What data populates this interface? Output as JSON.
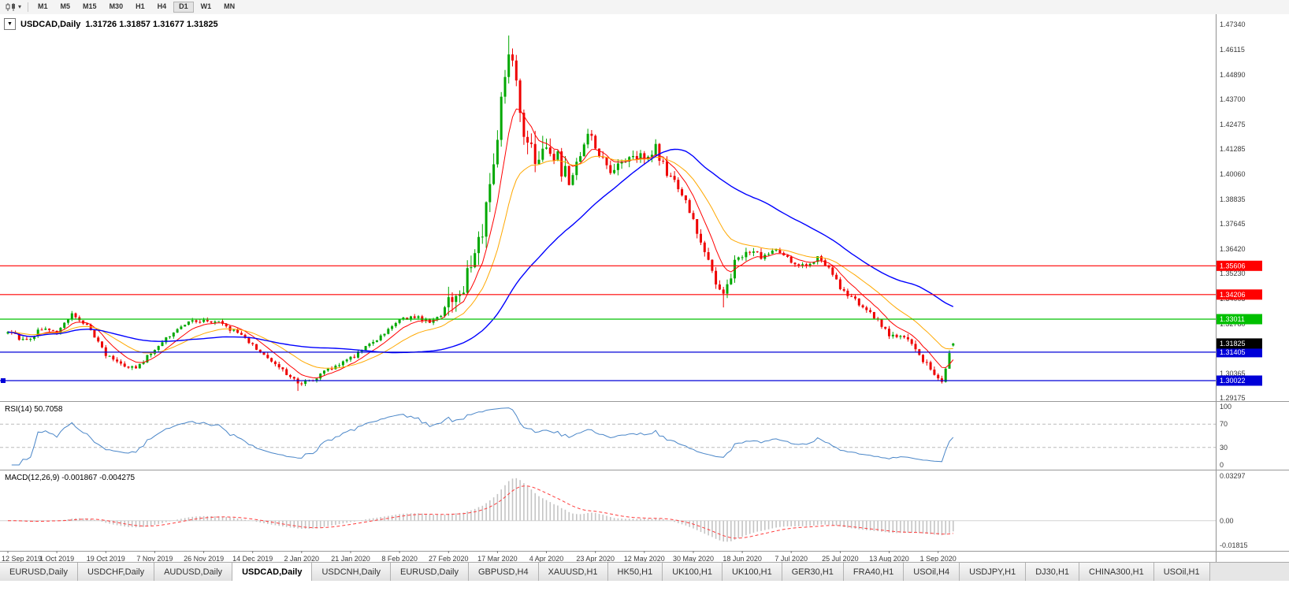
{
  "toolbar": {
    "timeframes": [
      "M1",
      "M5",
      "M15",
      "M30",
      "H1",
      "H4",
      "D1",
      "W1",
      "MN"
    ],
    "active_timeframe": "D1"
  },
  "chart_header": {
    "symbol_label": "USDCAD,Daily",
    "ohlc": "1.31726 1.31857 1.31677 1.31825"
  },
  "chart_data": {
    "type": "candlestick",
    "symbol": "USDCAD",
    "timeframe": "Daily",
    "current_bar": {
      "open": 1.31726,
      "high": 1.31857,
      "low": 1.31677,
      "close": 1.31825
    },
    "y_axis": {
      "top": 1.4784,
      "bottom": 1.29025,
      "labels": [
        "1.47340",
        "1.46115",
        "1.44890",
        "1.43700",
        "1.42475",
        "1.41285",
        "1.40060",
        "1.38835",
        "1.37645",
        "1.36420",
        "1.35230",
        "1.34005",
        "1.32780",
        "1.30365",
        "1.29175"
      ]
    },
    "x_labels": [
      "12 Sep 2019",
      "1 Oct 2019",
      "19 Oct 2019",
      "7 Nov 2019",
      "26 Nov 2019",
      "14 Dec 2019",
      "2 Jan 2020",
      "21 Jan 2020",
      "8 Feb 2020",
      "27 Feb 2020",
      "17 Mar 2020",
      "4 Apr 2020",
      "23 Apr 2020",
      "12 May 2020",
      "30 May 2020",
      "18 Jun 2020",
      "7 Jul 2020",
      "25 Jul 2020",
      "13 Aug 2020",
      "1 Sep 2020"
    ],
    "x_label_step": 13,
    "num_candles": 252,
    "candle_colors": {
      "up": "#00A800",
      "down": "#EE0000"
    },
    "horizontal_lines": [
      {
        "price": 1.35606,
        "color": "#FF0000",
        "left_marker": false
      },
      {
        "price": 1.34206,
        "color": "#FF0000",
        "left_marker": false
      },
      {
        "price": 1.33011,
        "color": "#00C000",
        "left_marker": false
      },
      {
        "price": 1.31405,
        "color": "#0000D8",
        "left_marker": false
      },
      {
        "price": 1.30022,
        "color": "#0000D8",
        "left_marker": true
      }
    ],
    "current_price_badge": {
      "price": 1.31825,
      "color": "#000000"
    },
    "price_path_anchors": [
      [
        0,
        1.3235
      ],
      [
        5,
        1.3195
      ],
      [
        9,
        1.3258
      ],
      [
        13,
        1.3242
      ],
      [
        17,
        1.333
      ],
      [
        21,
        1.3268
      ],
      [
        26,
        1.313
      ],
      [
        30,
        1.3078
      ],
      [
        34,
        1.3062
      ],
      [
        39,
        1.3155
      ],
      [
        44,
        1.3235
      ],
      [
        48,
        1.3282
      ],
      [
        52,
        1.33
      ],
      [
        57,
        1.3278
      ],
      [
        61,
        1.323
      ],
      [
        65,
        1.3172
      ],
      [
        69,
        1.312
      ],
      [
        73,
        1.3052
      ],
      [
        77,
        1.2986
      ],
      [
        80,
        1.3
      ],
      [
        84,
        1.3045
      ],
      [
        88,
        1.3075
      ],
      [
        91,
        1.3108
      ],
      [
        95,
        1.3165
      ],
      [
        100,
        1.3232
      ],
      [
        104,
        1.3295
      ],
      [
        108,
        1.3312
      ],
      [
        112,
        1.329
      ],
      [
        115,
        1.3312
      ],
      [
        117,
        1.3392
      ],
      [
        120,
        1.3425
      ],
      [
        123,
        1.353
      ],
      [
        126,
        1.3705
      ],
      [
        128,
        1.393
      ],
      [
        130,
        1.418
      ],
      [
        132,
        1.448
      ],
      [
        133,
        1.462
      ],
      [
        135,
        1.4415
      ],
      [
        137,
        1.423
      ],
      [
        140,
        1.4062
      ],
      [
        143,
        1.4172
      ],
      [
        146,
        1.408
      ],
      [
        149,
        1.3952
      ],
      [
        152,
        1.41
      ],
      [
        154,
        1.4228
      ],
      [
        156,
        1.412
      ],
      [
        160,
        1.4032
      ],
      [
        164,
        1.409
      ],
      [
        169,
        1.4102
      ],
      [
        172,
        1.4132
      ],
      [
        175,
        1.4022
      ],
      [
        178,
        1.395
      ],
      [
        182,
        1.379
      ],
      [
        185,
        1.362
      ],
      [
        188,
        1.3482
      ],
      [
        190,
        1.3405
      ],
      [
        193,
        1.3572
      ],
      [
        196,
        1.364
      ],
      [
        200,
        1.3602
      ],
      [
        204,
        1.3648
      ],
      [
        208,
        1.3582
      ],
      [
        212,
        1.3562
      ],
      [
        215,
        1.36
      ],
      [
        219,
        1.3522
      ],
      [
        221,
        1.3445
      ],
      [
        225,
        1.3392
      ],
      [
        228,
        1.3352
      ],
      [
        231,
        1.3295
      ],
      [
        234,
        1.3232
      ],
      [
        237,
        1.3222
      ],
      [
        240,
        1.3192
      ],
      [
        242,
        1.3132
      ],
      [
        244,
        1.3082
      ],
      [
        246,
        1.3032
      ],
      [
        248,
        1.2998
      ],
      [
        249,
        1.3062
      ],
      [
        250,
        1.3132
      ],
      [
        251,
        1.3182
      ]
    ],
    "volatility_zones": [
      {
        "from": 0,
        "to": 116,
        "amp": 0.0038
      },
      {
        "from": 117,
        "to": 148,
        "amp": 0.02
      },
      {
        "from": 149,
        "to": 175,
        "amp": 0.0095
      },
      {
        "from": 176,
        "to": 200,
        "amp": 0.0075
      },
      {
        "from": 201,
        "to": 233,
        "amp": 0.0042
      },
      {
        "from": 234,
        "to": 251,
        "amp": 0.0055
      }
    ],
    "wick_overrides": [
      {
        "i": 133,
        "high": 1.468
      },
      {
        "i": 77,
        "low": 1.2952
      },
      {
        "i": 190,
        "low": 1.3358
      },
      {
        "i": 248,
        "low": 1.2988
      }
    ],
    "moving_averages": [
      {
        "type": "ema",
        "period": 8,
        "color": "#FF0000",
        "width": 1
      },
      {
        "type": "ema",
        "period": 20,
        "color": "#FFA800",
        "width": 1
      },
      {
        "type": "sma",
        "period": 50,
        "color": "#0000FF",
        "width": 1.4
      }
    ],
    "rsi": {
      "label": "RSI(14) 50.7058",
      "period": 14,
      "levels": [
        100,
        70,
        30,
        0
      ],
      "dashed_levels": [
        70,
        30
      ],
      "color": "#4A86C8"
    },
    "macd": {
      "label": "MACD(12,26,9) -0.001867 -0.004275",
      "fast": 12,
      "slow": 26,
      "signal": 9,
      "range_max": 0.03297,
      "range_min": -0.01815,
      "axis_labels": [
        "0.03297",
        "0.00",
        "-0.01815"
      ],
      "histogram_color": "#C4C4C4",
      "signal_color": "#FF3C3C"
    }
  },
  "tabs": {
    "items": [
      "EURUSD,Daily",
      "USDCHF,Daily",
      "AUDUSD,Daily",
      "USDCAD,Daily",
      "USDCNH,Daily",
      "EURUSD,Daily",
      "GBPUSD,H4",
      "XAUUSD,H1",
      "HK50,H1",
      "UK100,H1",
      "UK100,H1",
      "GER30,H1",
      "FRA40,H1",
      "USOil,H4",
      "USDJPY,H1",
      "DJ30,H1",
      "CHINA300,H1",
      "USOil,H1"
    ],
    "active_index": 3
  }
}
